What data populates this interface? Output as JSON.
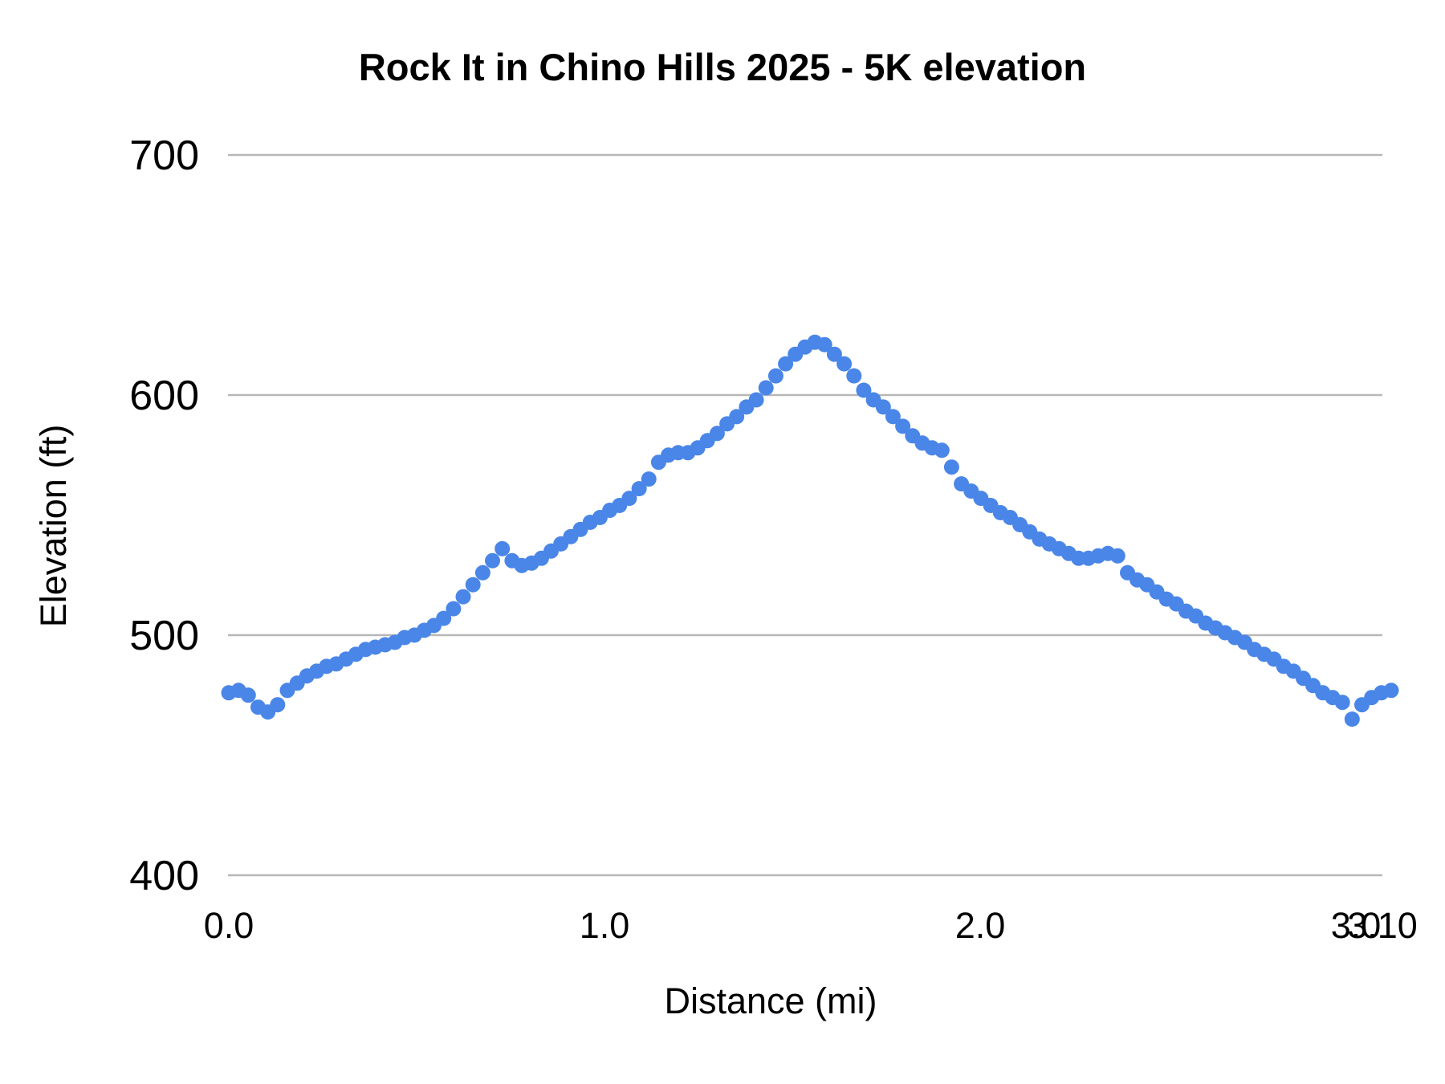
{
  "title": "Rock It in Chino Hills 2025 - 5K elevation",
  "chart_data": {
    "type": "scatter",
    "title": "Rock It in Chino Hills 2025 - 5K elevation",
    "xlabel": "Distance (mi)",
    "ylabel": "Elevation (ft)",
    "xlim": [
      0.0,
      3.1
    ],
    "ylim": [
      400,
      700
    ],
    "grid": "horizontal-only",
    "legend": "none",
    "point_color": "#4a86e8",
    "gridline_color": "#b7b7b7",
    "y_ticks": [
      {
        "label": "400",
        "value": 400
      },
      {
        "label": "500",
        "value": 500
      },
      {
        "label": "600",
        "value": 600
      },
      {
        "label": "700",
        "value": 700
      }
    ],
    "x_ticks": [
      {
        "label": "0.0",
        "value": 0.0
      },
      {
        "label": "1.0",
        "value": 1.0
      },
      {
        "label": "2.0",
        "value": 2.0
      },
      {
        "label": "3.0",
        "value": 3.0
      }
    ],
    "x_end_tick": {
      "label": "3.10",
      "value": 3.1
    },
    "points": [
      [
        0.0,
        476
      ],
      [
        0.026,
        477
      ],
      [
        0.052,
        475
      ],
      [
        0.078,
        470
      ],
      [
        0.104,
        468
      ],
      [
        0.13,
        471
      ],
      [
        0.156,
        477
      ],
      [
        0.182,
        480
      ],
      [
        0.208,
        483
      ],
      [
        0.234,
        485
      ],
      [
        0.26,
        487
      ],
      [
        0.286,
        488
      ],
      [
        0.312,
        490
      ],
      [
        0.338,
        492
      ],
      [
        0.364,
        494
      ],
      [
        0.39,
        495
      ],
      [
        0.416,
        496
      ],
      [
        0.442,
        497
      ],
      [
        0.468,
        499
      ],
      [
        0.494,
        500
      ],
      [
        0.52,
        502
      ],
      [
        0.546,
        504
      ],
      [
        0.572,
        507
      ],
      [
        0.598,
        511
      ],
      [
        0.624,
        516
      ],
      [
        0.65,
        521
      ],
      [
        0.676,
        526
      ],
      [
        0.702,
        531
      ],
      [
        0.728,
        536
      ],
      [
        0.754,
        531
      ],
      [
        0.78,
        529
      ],
      [
        0.806,
        530
      ],
      [
        0.832,
        532
      ],
      [
        0.858,
        535
      ],
      [
        0.884,
        538
      ],
      [
        0.91,
        541
      ],
      [
        0.936,
        544
      ],
      [
        0.962,
        547
      ],
      [
        0.988,
        549
      ],
      [
        1.014,
        552
      ],
      [
        1.04,
        554
      ],
      [
        1.066,
        557
      ],
      [
        1.092,
        561
      ],
      [
        1.118,
        565
      ],
      [
        1.144,
        572
      ],
      [
        1.17,
        575
      ],
      [
        1.196,
        576
      ],
      [
        1.222,
        576
      ],
      [
        1.248,
        578
      ],
      [
        1.274,
        581
      ],
      [
        1.3,
        584
      ],
      [
        1.326,
        588
      ],
      [
        1.352,
        591
      ],
      [
        1.378,
        595
      ],
      [
        1.404,
        598
      ],
      [
        1.43,
        603
      ],
      [
        1.456,
        608
      ],
      [
        1.482,
        613
      ],
      [
        1.508,
        617
      ],
      [
        1.534,
        620
      ],
      [
        1.56,
        622
      ],
      [
        1.586,
        621
      ],
      [
        1.612,
        617
      ],
      [
        1.638,
        613
      ],
      [
        1.664,
        608
      ],
      [
        1.69,
        602
      ],
      [
        1.716,
        598
      ],
      [
        1.742,
        595
      ],
      [
        1.768,
        591
      ],
      [
        1.794,
        587
      ],
      [
        1.82,
        583
      ],
      [
        1.846,
        580
      ],
      [
        1.872,
        578
      ],
      [
        1.898,
        577
      ],
      [
        1.924,
        570
      ],
      [
        1.95,
        563
      ],
      [
        1.976,
        560
      ],
      [
        2.002,
        557
      ],
      [
        2.028,
        554
      ],
      [
        2.054,
        551
      ],
      [
        2.08,
        549
      ],
      [
        2.106,
        546
      ],
      [
        2.132,
        543
      ],
      [
        2.158,
        540
      ],
      [
        2.184,
        538
      ],
      [
        2.21,
        536
      ],
      [
        2.236,
        534
      ],
      [
        2.262,
        532
      ],
      [
        2.288,
        532
      ],
      [
        2.314,
        533
      ],
      [
        2.34,
        534
      ],
      [
        2.366,
        533
      ],
      [
        2.392,
        526
      ],
      [
        2.418,
        523
      ],
      [
        2.444,
        521
      ],
      [
        2.47,
        518
      ],
      [
        2.496,
        515
      ],
      [
        2.522,
        513
      ],
      [
        2.548,
        510
      ],
      [
        2.574,
        508
      ],
      [
        2.6,
        505
      ],
      [
        2.626,
        503
      ],
      [
        2.652,
        501
      ],
      [
        2.678,
        499
      ],
      [
        2.704,
        497
      ],
      [
        2.73,
        494
      ],
      [
        2.756,
        492
      ],
      [
        2.782,
        490
      ],
      [
        2.808,
        487
      ],
      [
        2.834,
        485
      ],
      [
        2.86,
        482
      ],
      [
        2.886,
        479
      ],
      [
        2.912,
        476
      ],
      [
        2.938,
        474
      ],
      [
        2.964,
        472
      ],
      [
        2.99,
        465
      ],
      [
        3.016,
        471
      ],
      [
        3.042,
        474
      ],
      [
        3.068,
        476
      ],
      [
        3.094,
        477
      ]
    ]
  }
}
